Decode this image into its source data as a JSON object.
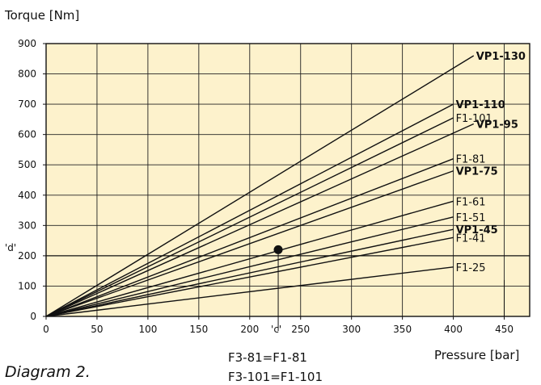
{
  "chart_data": {
    "type": "line",
    "ylabel": "Torque [Nm]",
    "xlabel": "Pressure [bar]",
    "xlim": [
      0,
      475
    ],
    "ylim": [
      0,
      900
    ],
    "x_ticks": [
      0,
      50,
      100,
      150,
      200,
      250,
      300,
      350,
      400,
      450
    ],
    "y_ticks": [
      0,
      100,
      200,
      300,
      400,
      500,
      600,
      700,
      800,
      900
    ],
    "grid": true,
    "background_color": "#fdf2cc",
    "series": [
      {
        "name": "VP1-130",
        "x": [
          0,
          420
        ],
        "y": [
          0,
          860
        ],
        "bold": true
      },
      {
        "name": "VP1-110",
        "x": [
          0,
          400
        ],
        "y": [
          0,
          700
        ],
        "bold": true
      },
      {
        "name": "F1-101",
        "x": [
          0,
          400
        ],
        "y": [
          0,
          655
        ],
        "bold": false
      },
      {
        "name": "VP1-95",
        "x": [
          0,
          420
        ],
        "y": [
          0,
          635
        ],
        "bold": true
      },
      {
        "name": "F1-81",
        "x": [
          0,
          400
        ],
        "y": [
          0,
          520
        ],
        "bold": false
      },
      {
        "name": "VP1-75",
        "x": [
          0,
          400
        ],
        "y": [
          0,
          480
        ],
        "bold": true
      },
      {
        "name": "F1-61",
        "x": [
          0,
          400
        ],
        "y": [
          0,
          380
        ],
        "bold": false
      },
      {
        "name": "F1-51",
        "x": [
          0,
          400
        ],
        "y": [
          0,
          328
        ],
        "bold": false
      },
      {
        "name": "VP1-45",
        "x": [
          0,
          400
        ],
        "y": [
          0,
          287
        ],
        "bold": true
      },
      {
        "name": "F1-41",
        "x": [
          0,
          400
        ],
        "y": [
          0,
          260
        ],
        "bold": false
      },
      {
        "name": "F1-25",
        "x": [
          0,
          400
        ],
        "y": [
          0,
          163
        ],
        "bold": false
      }
    ],
    "annotations": {
      "point": {
        "x": 228,
        "y": 220
      },
      "x_marker_label": "'c'",
      "y_marker_label": "'d'",
      "y_ref_line": 200,
      "x_ref_line_at": 450
    }
  },
  "caption": "Diagram 2.",
  "notes": [
    "F3-81=F1-81",
    "F3-101=F1-101"
  ]
}
